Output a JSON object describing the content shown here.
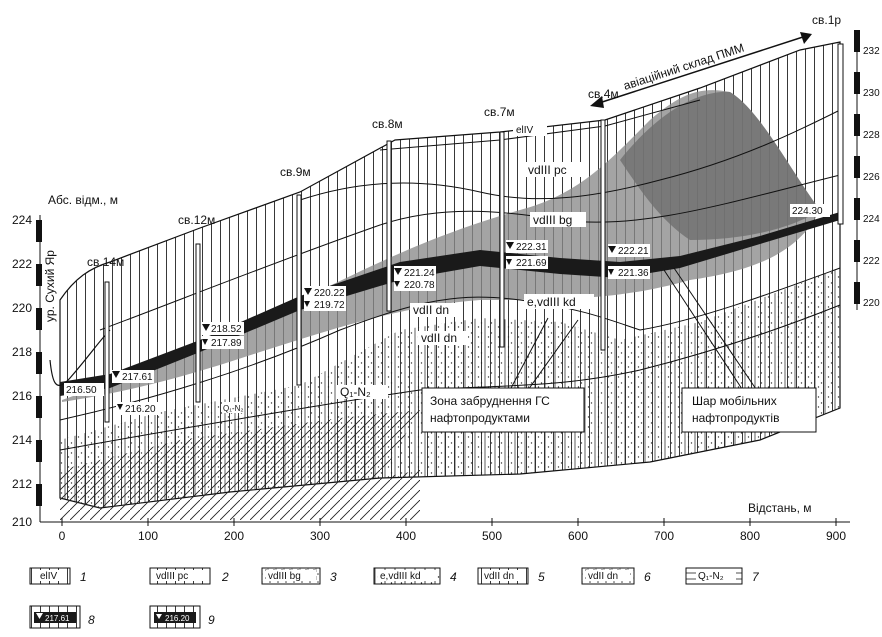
{
  "y_axis_left": {
    "title": "Абс. відм., м",
    "ticks": [
      "224",
      "222",
      "220",
      "218",
      "216",
      "214",
      "212",
      "210"
    ]
  },
  "y_axis_right": {
    "ticks": [
      "232",
      "230",
      "228",
      "226",
      "224",
      "222",
      "220"
    ]
  },
  "x_axis": {
    "title": "Відстань, м",
    "ticks": [
      "0",
      "100",
      "200",
      "300",
      "400",
      "500",
      "600",
      "700",
      "800",
      "900"
    ]
  },
  "ravine_label": "ур. Сухий Яр",
  "site_label": "авіаційний склад ПММ",
  "wells": [
    {
      "name": "св.14м",
      "upper": "217.61",
      "lower": "216.20"
    },
    {
      "name": "св.12м",
      "upper": "218.52",
      "lower": "217.89"
    },
    {
      "name": "св.9м",
      "upper": "220.22",
      "lower": "219.72"
    },
    {
      "name": "св.8м",
      "upper": "221.24",
      "lower": "220.78"
    },
    {
      "name": "св.7м",
      "upper": "222.31",
      "lower": "221.69"
    },
    {
      "name": "св.4м",
      "upper": "222.21",
      "lower": "221.36"
    },
    {
      "name": "св.1р",
      "upper": "224.30",
      "lower": ""
    }
  ],
  "ravine_level": "216.50",
  "layers": {
    "elIV": "elIV",
    "pc": "vdIII pc",
    "bg": "vdIII bg",
    "kd": "e,vdIII kd",
    "dn1": "vdII dn",
    "dn2": "vdII dn",
    "qn": "Q₁-N₂",
    "q_small": "Q₁-N₂"
  },
  "callouts": {
    "zone_line1": "Зона забруднення ГС",
    "zone_line2": "нафтопродуктами",
    "mobile_line1": "Шар мобільних",
    "mobile_line2": "нафтопродуктів"
  },
  "legend": [
    {
      "label": "elIV",
      "num": "1"
    },
    {
      "label": "vdIII pc",
      "num": "2"
    },
    {
      "label": "vdIII bg",
      "num": "3"
    },
    {
      "label": "e,vdIII kd",
      "num": "4"
    },
    {
      "label": "vdII dn",
      "num": "5"
    },
    {
      "label": "vdII dn",
      "num": "6"
    },
    {
      "label": "Q₁-N₂",
      "num": "7"
    },
    {
      "label": "217.61",
      "num": "8"
    },
    {
      "label": "216.20",
      "num": "9"
    }
  ],
  "colors": {
    "contamination": "#8a8a8a",
    "contamination_dark": "#6e6e6e",
    "oil_layer": "#1a1a1a"
  }
}
